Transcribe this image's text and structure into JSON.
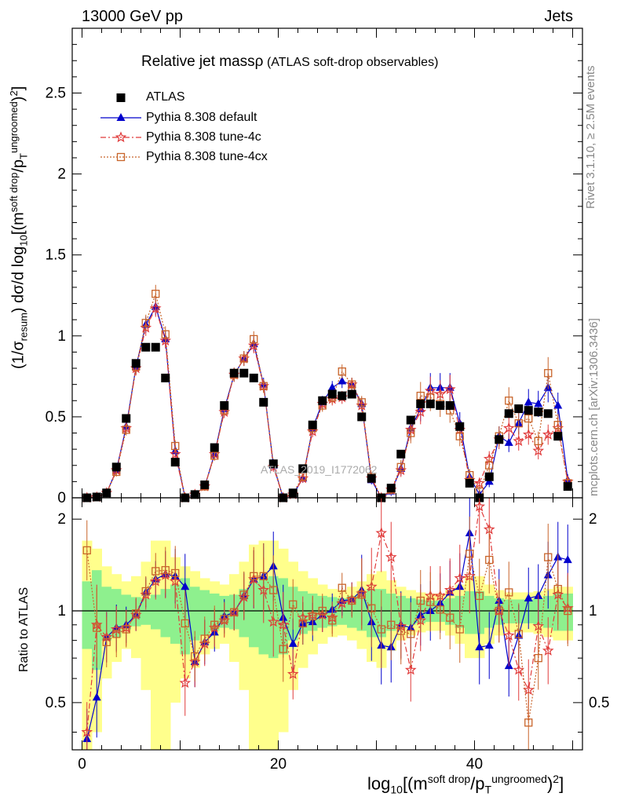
{
  "header": {
    "energy_label": "13000 GeV pp",
    "category_label": "Jets"
  },
  "side_labels": {
    "rivet": "Rivet 3.1.10, ≥ 2.5M events",
    "mcplots": "mcplots.cern.ch [arXiv:1306.3436]"
  },
  "watermark": "ATLAS_2019_I1772062",
  "colors": {
    "atlas": "#000000",
    "default": "#0000cc",
    "tune4c": "#e03a3a",
    "tune4cx": "#c8642a",
    "band_inner": "#8ef08e",
    "band_outer": "#ffff8c"
  },
  "chart_data": [
    {
      "type": "scatter",
      "title": "Relative jet massρ (ATLAS soft-drop observables)",
      "title_main": "Relative jet massρ",
      "title_sub": "(ATLAS soft-drop observables)",
      "ylabel": "(1/σresum) dσ/d log10[(msoft drop/pTungroomed)2]",
      "xlim": [
        -1,
        51
      ],
      "ylim": [
        0,
        2.9
      ],
      "y_ticks": [
        0,
        0.5,
        1,
        1.5,
        2,
        2.5
      ],
      "y_tick_labels": [
        "0",
        "0.5",
        "1",
        "1.5",
        "2",
        "2.5"
      ],
      "x": [
        0.5,
        1.5,
        2.5,
        3.5,
        4.5,
        5.5,
        6.5,
        7.5,
        8.5,
        9.5,
        10.5,
        11.5,
        12.5,
        13.5,
        14.5,
        15.5,
        16.5,
        17.5,
        18.5,
        19.5,
        20.5,
        21.5,
        22.5,
        23.5,
        24.5,
        25.5,
        26.5,
        27.5,
        28.5,
        29.5,
        30.5,
        31.5,
        32.5,
        33.5,
        34.5,
        35.5,
        36.5,
        37.5,
        38.5,
        39.5,
        40.5,
        41.5,
        42.5,
        43.5,
        44.5,
        45.5,
        46.5,
        47.5,
        48.5,
        49.5
      ],
      "legend": [
        "ATLAS",
        "Pythia 8.308 default",
        "Pythia 8.308 tune-4c",
        "Pythia 8.308 tune-4cx"
      ],
      "series": [
        {
          "name": "ATLAS",
          "values": [
            0.0,
            0.005,
            0.03,
            0.19,
            0.49,
            0.83,
            0.93,
            0.93,
            0.74,
            0.22,
            0.0,
            0.02,
            0.08,
            0.31,
            0.57,
            0.77,
            0.77,
            0.74,
            0.59,
            0.21,
            0.0,
            0.03,
            0.18,
            0.45,
            0.6,
            0.64,
            0.63,
            0.64,
            0.5,
            0.12,
            0.0,
            0.06,
            0.27,
            0.48,
            0.58,
            0.58,
            0.57,
            0.57,
            0.44,
            0.09,
            0.0,
            0.13,
            0.36,
            0.52,
            0.55,
            0.54,
            0.53,
            0.52,
            0.38,
            0.07
          ]
        },
        {
          "name": "Pythia 8.308 default",
          "values": [
            0.0,
            0.003,
            0.03,
            0.17,
            0.44,
            0.81,
            1.07,
            1.18,
            0.98,
            0.29,
            0.0,
            0.02,
            0.07,
            0.27,
            0.55,
            0.76,
            0.86,
            0.95,
            0.7,
            0.2,
            0.0,
            0.02,
            0.12,
            0.43,
            0.59,
            0.68,
            0.72,
            0.7,
            0.58,
            0.11,
            0.0,
            0.04,
            0.18,
            0.43,
            0.55,
            0.68,
            0.68,
            0.68,
            0.46,
            0.13,
            0.02,
            0.1,
            0.38,
            0.34,
            0.46,
            0.59,
            0.58,
            0.68,
            0.57,
            0.11
          ]
        },
        {
          "name": "Pythia 8.308 tune-4c",
          "values": [
            0.0,
            0.004,
            0.03,
            0.17,
            0.43,
            0.8,
            1.05,
            1.17,
            0.97,
            0.27,
            0.0,
            0.02,
            0.07,
            0.27,
            0.53,
            0.76,
            0.86,
            0.94,
            0.69,
            0.19,
            0.0,
            0.02,
            0.12,
            0.41,
            0.58,
            0.61,
            0.62,
            0.7,
            0.57,
            0.12,
            0.0,
            0.05,
            0.17,
            0.42,
            0.53,
            0.66,
            0.64,
            0.67,
            0.42,
            0.11,
            0.09,
            0.24,
            0.36,
            0.43,
            0.35,
            0.39,
            0.29,
            0.39,
            0.43,
            0.1
          ]
        },
        {
          "name": "Pythia 8.308 tune-4cx",
          "values": [
            0.0,
            0.004,
            0.03,
            0.16,
            0.42,
            0.81,
            1.08,
            1.26,
            1.01,
            0.32,
            0.0,
            0.02,
            0.07,
            0.26,
            0.54,
            0.76,
            0.86,
            0.98,
            0.69,
            0.21,
            0.0,
            0.03,
            0.13,
            0.43,
            0.57,
            0.62,
            0.78,
            0.7,
            0.59,
            0.13,
            0.0,
            0.05,
            0.19,
            0.4,
            0.63,
            0.62,
            0.58,
            0.54,
            0.38,
            0.14,
            0.04,
            0.2,
            0.38,
            0.6,
            0.46,
            0.49,
            0.35,
            0.77,
            0.45,
            0.09
          ]
        }
      ]
    },
    {
      "type": "scatter",
      "ylabel": "Ratio to ATLAS",
      "xlabel": "log10[(msoft drop/pTungroomed)2]",
      "xlim": [
        -1,
        51
      ],
      "ylim": [
        0.35,
        2.35
      ],
      "log_y": true,
      "y_ticks": [
        0.5,
        1,
        2
      ],
      "y_tick_labels": [
        "0.5",
        "1",
        "2"
      ],
      "x_ticks": [
        0,
        20,
        40
      ],
      "x_tick_labels": [
        "0",
        "20",
        "40"
      ],
      "reference_line": 1,
      "x": [
        0.5,
        1.5,
        2.5,
        3.5,
        4.5,
        5.5,
        6.5,
        7.5,
        8.5,
        9.5,
        10.5,
        11.5,
        12.5,
        13.5,
        14.5,
        15.5,
        16.5,
        17.5,
        18.5,
        19.5,
        20.5,
        21.5,
        22.5,
        23.5,
        24.5,
        25.5,
        26.5,
        27.5,
        28.5,
        29.5,
        30.5,
        31.5,
        32.5,
        33.5,
        34.5,
        35.5,
        36.5,
        37.5,
        38.5,
        39.5,
        40.5,
        41.5,
        42.5,
        43.5,
        44.5,
        45.5,
        46.5,
        47.5,
        48.5,
        49.5
      ],
      "series": [
        {
          "name": "Pythia 8.308 default",
          "values": [
            0.38,
            0.52,
            0.82,
            0.88,
            0.9,
            0.97,
            1.15,
            1.27,
            1.32,
            1.3,
            1.2,
            0.68,
            0.79,
            0.85,
            0.96,
            0.99,
            1.12,
            1.27,
            1.3,
            1.4,
            0.95,
            0.78,
            0.91,
            0.92,
            0.97,
            1.01,
            1.08,
            1.09,
            1.17,
            0.92,
            0.77,
            0.76,
            0.9,
            0.88,
            0.97,
            1.0,
            1.06,
            1.15,
            1.2,
            1.8,
            0.76,
            0.77,
            1.08,
            0.66,
            0.83,
            1.1,
            1.12,
            1.31,
            1.5,
            1.47
          ]
        },
        {
          "name": "Pythia 8.308 tune-4c",
          "values": [
            0.4,
            0.9,
            0.82,
            0.87,
            0.88,
            0.97,
            1.13,
            1.25,
            1.31,
            1.25,
            0.58,
            0.68,
            0.78,
            0.88,
            0.93,
            0.99,
            1.11,
            1.27,
            1.17,
            0.92,
            0.9,
            0.62,
            0.95,
            0.97,
            0.97,
            0.95,
            1.06,
            1.09,
            1.14,
            1.2,
            1.8,
            1.5,
            0.89,
            0.64,
            0.93,
            1.12,
            1.12,
            1.17,
            1.28,
            1.3,
            2.2,
            1.85,
            1.0,
            0.83,
            0.64,
            0.55,
            0.89,
            0.74,
            1.13,
            1.02
          ]
        },
        {
          "name": "Pythia 8.308 tune-4cx",
          "values": [
            1.58,
            0.88,
            0.79,
            0.84,
            0.87,
            0.98,
            1.16,
            1.35,
            1.36,
            1.33,
            0.91,
            0.71,
            0.81,
            0.9,
            0.94,
            0.99,
            1.13,
            1.3,
            1.3,
            1.17,
            0.75,
            1.05,
            0.91,
            0.96,
            1.0,
            0.93,
            1.19,
            1.08,
            1.13,
            1.02,
            0.87,
            0.9,
            0.86,
            0.84,
            1.08,
            1.07,
            1.01,
            0.95,
            0.87,
            1.54,
            1.12,
            1.47,
            1.0,
            1.15,
            0.84,
            0.43,
            0.7,
            1.5,
            1.18,
            1.0
          ]
        }
      ],
      "band_inner": [
        0.25,
        0.36,
        0.2,
        0.18,
        0.13,
        0.11,
        0.1,
        0.13,
        0.18,
        0.22,
        0.28,
        0.2,
        0.17,
        0.14,
        0.12,
        0.13,
        0.18,
        0.24,
        0.28,
        0.3,
        0.28,
        0.2,
        0.16,
        0.14,
        0.12,
        0.11,
        0.1,
        0.12,
        0.14,
        0.18,
        0.18,
        0.14,
        0.12,
        0.1,
        0.09,
        0.08,
        0.08,
        0.1,
        0.12,
        0.16,
        0.16,
        0.12,
        0.1,
        0.09,
        0.09,
        0.09,
        0.1,
        0.12,
        0.14,
        0.14
      ],
      "band_outer": [
        0.7,
        0.6,
        0.4,
        0.32,
        0.25,
        0.3,
        0.45,
        0.7,
        0.7,
        0.5,
        0.4,
        0.35,
        0.28,
        0.25,
        0.22,
        0.32,
        0.45,
        0.65,
        0.7,
        0.7,
        0.6,
        0.45,
        0.35,
        0.28,
        0.22,
        0.18,
        0.17,
        0.2,
        0.25,
        0.32,
        0.35,
        0.26,
        0.2,
        0.17,
        0.15,
        0.14,
        0.14,
        0.17,
        0.22,
        0.3,
        0.3,
        0.22,
        0.17,
        0.15,
        0.15,
        0.15,
        0.16,
        0.18,
        0.2,
        0.2
      ]
    }
  ]
}
